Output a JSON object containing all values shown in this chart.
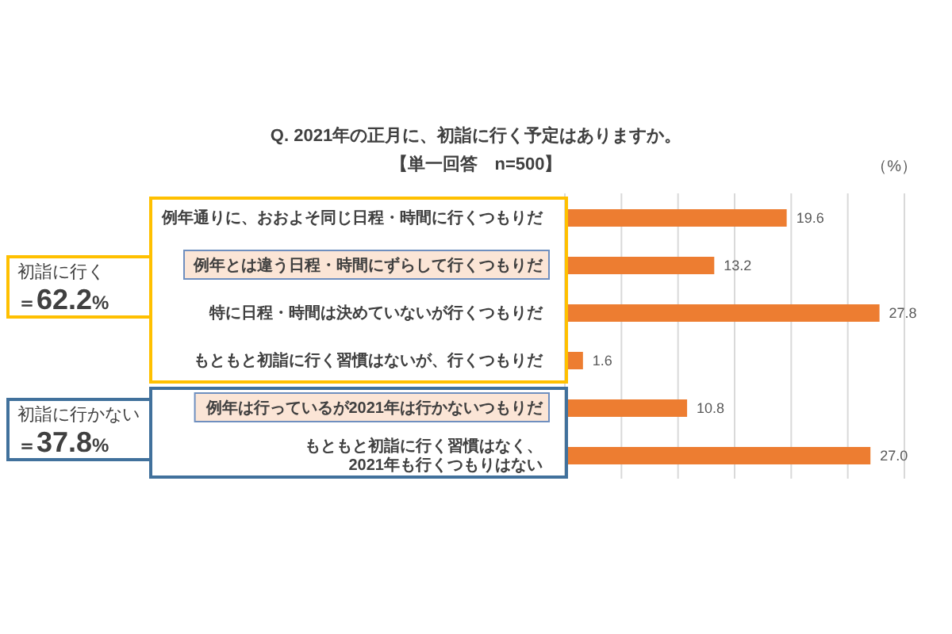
{
  "chart_data": {
    "type": "bar",
    "orientation": "horizontal",
    "title": "Q. 2021年の正月に、初詣に行く予定はありますか。",
    "subtitle": "【単一回答　n=500】",
    "annotations": [
      "（%）",
      "初詣に行く＝62.2%",
      "初詣に行かない＝37.8%"
    ],
    "categories": [
      "例年通りに、おおよそ同じ日程・時間に行くつもりだ",
      "例年とは違う日程・時間にずらして行くつもりだ",
      "特に日程・時間は決めていないが行くつもりだ",
      "もともと初詣に行く習慣はないが、行くつもりだ",
      "例年は行っているが2021年は行かないつもりだ",
      "もともと初詣に行く習慣はなく、2021年も行くつもりはない"
    ],
    "values": [
      19.6,
      13.2,
      27.8,
      1.6,
      10.8,
      27.0
    ],
    "value_labels": [
      "19.6",
      "13.2",
      "27.8",
      "1.6",
      "10.8",
      "27.0"
    ],
    "color": "#ed7d31",
    "xlim": [
      0,
      30
    ],
    "xticks": [
      {
        "value": 0,
        "label": null
      },
      {
        "value": 5,
        "label": null
      },
      {
        "value": 10,
        "label": null
      },
      {
        "value": 15,
        "label": null
      },
      {
        "value": 20,
        "label": null
      },
      {
        "value": 25,
        "label": null
      },
      {
        "value": 30,
        "label": null
      }
    ],
    "grid": "x",
    "tick_labels": "y"
  }
}
